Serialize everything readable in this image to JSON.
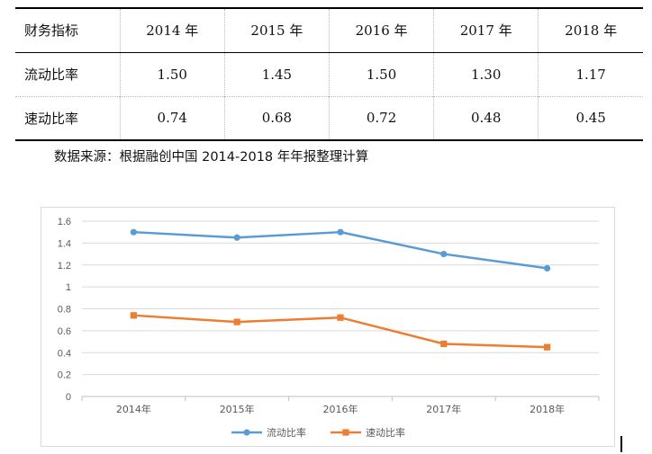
{
  "table": {
    "headers": [
      "财务指标",
      "2014 年",
      "2015 年",
      "2016 年",
      "2017 年",
      "2018 年"
    ],
    "rows": [
      {
        "label": "流动比率",
        "values": [
          "1.50",
          "1.45",
          "1.50",
          "1.30",
          "1.17"
        ]
      },
      {
        "label": "速动比率",
        "values": [
          "0.74",
          "0.68",
          "0.72",
          "0.48",
          "0.45"
        ]
      }
    ]
  },
  "source_note": "数据来源：根据融创中国 2014-2018 年年报整理计算",
  "chart_data": {
    "type": "line",
    "title": "",
    "xlabel": "",
    "ylabel": "",
    "categories": [
      "2014年",
      "2015年",
      "2016年",
      "2017年",
      "2018年"
    ],
    "ylim": [
      0,
      1.6
    ],
    "yticks": [
      "0",
      "0.2",
      "0.4",
      "0.6",
      "0.8",
      "1",
      "1.2",
      "1.4",
      "1.6"
    ],
    "grid": true,
    "legend_position": "bottom",
    "series": [
      {
        "name": "流动比率",
        "values": [
          1.5,
          1.45,
          1.5,
          1.3,
          1.17
        ],
        "color": "#5B9BD5",
        "marker": "circle"
      },
      {
        "name": "速动比率",
        "values": [
          0.74,
          0.68,
          0.72,
          0.48,
          0.45
        ],
        "color": "#ED7D31",
        "marker": "square"
      }
    ]
  }
}
